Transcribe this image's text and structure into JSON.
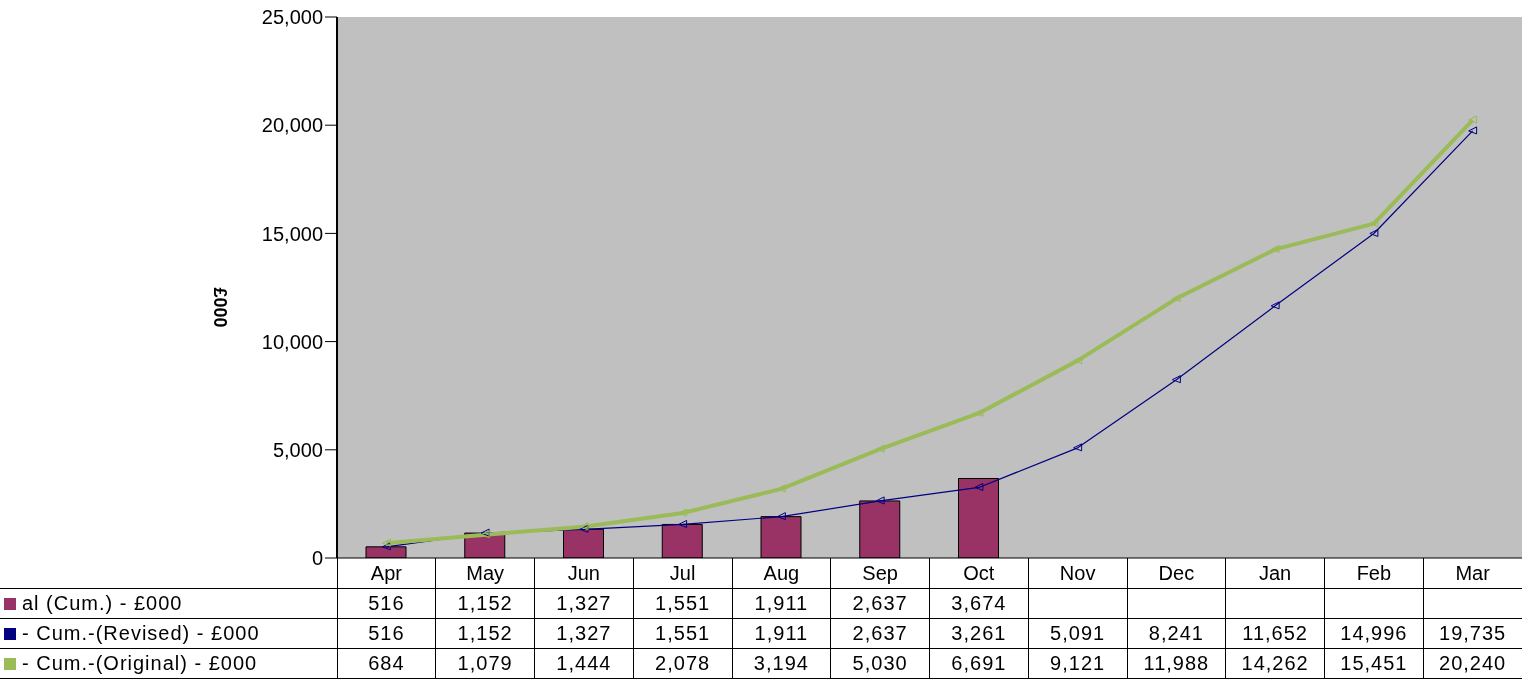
{
  "chart_data": {
    "type": "bar",
    "ylabel": "£000",
    "categories": [
      "Apr",
      "May",
      "Jun",
      "Jul",
      "Aug",
      "Sep",
      "Oct",
      "Nov",
      "Dec",
      "Jan",
      "Feb",
      "Mar"
    ],
    "series": [
      {
        "name": "al (Cum.) - £000",
        "color": "#993366",
        "values": [
          516,
          1152,
          1327,
          1551,
          1911,
          2637,
          3674,
          null,
          null,
          null,
          null,
          null
        ],
        "value_labels": [
          "516",
          "1,152",
          "1,327",
          "1,551",
          "1,911",
          "2,637",
          "3,674",
          null,
          null,
          null,
          null,
          null
        ]
      },
      {
        "name": "- Cum.-(Revised) - £000",
        "type": "line",
        "color": "#000080",
        "values": [
          516,
          1152,
          1327,
          1551,
          1911,
          2637,
          3261,
          5091,
          8241,
          11652,
          14996,
          19735
        ],
        "value_labels": [
          "516",
          "1,152",
          "1,327",
          "1,551",
          "1,911",
          "2,637",
          "3,261",
          "5,091",
          "8,241",
          "11,652",
          "14,996",
          "19,735"
        ]
      },
      {
        "name": "- Cum.-(Original) - £000",
        "type": "line",
        "color": "#9bbb59",
        "values": [
          684,
          1079,
          1444,
          2078,
          3194,
          5030,
          6691,
          9121,
          11988,
          14262,
          15451,
          20240
        ],
        "value_labels": [
          "684",
          "1,079",
          "1,444",
          "2,078",
          "3,194",
          "5,030",
          "6,691",
          "9,121",
          "11,988",
          "14,262",
          "15,451",
          "20,240"
        ]
      }
    ],
    "ylim": [
      0,
      25000
    ],
    "yticks": [
      0,
      {
        "value": 5000,
        "label": "5,000"
      },
      {
        "value": 10000,
        "label": "10,000"
      },
      {
        "value": 15000,
        "label": "15,000"
      },
      {
        "value": 20000,
        "label": "20,000"
      },
      {
        "value": 25000,
        "label": "25,000"
      }
    ],
    "grid": false,
    "legend": "bottom left",
    "marker": "triangle",
    "line_style": "solid"
  }
}
